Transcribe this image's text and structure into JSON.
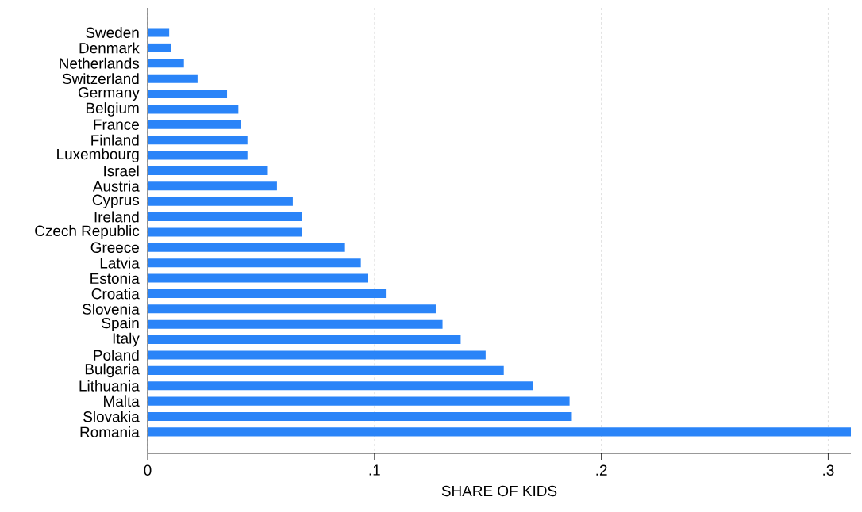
{
  "chart_data": {
    "type": "bar",
    "orientation": "horizontal",
    "xlabel": "SHARE OF KIDS",
    "categories": [
      "Sweden",
      "Denmark",
      "Netherlands",
      "Switzerland",
      "Germany",
      "Belgium",
      "France",
      "Finland",
      "Luxembourg",
      "Israel",
      "Austria",
      "Cyprus",
      "Ireland",
      "Czech Republic",
      "Greece",
      "Latvia",
      "Estonia",
      "Croatia",
      "Slovenia",
      "Spain",
      "Italy",
      "Poland",
      "Bulgaria",
      "Lithuania",
      "Malta",
      "Slovakia",
      "Romania"
    ],
    "values": [
      0.0095,
      0.0105,
      0.016,
      0.022,
      0.035,
      0.04,
      0.041,
      0.044,
      0.044,
      0.053,
      0.057,
      0.064,
      0.068,
      0.068,
      0.087,
      0.094,
      0.097,
      0.105,
      0.127,
      0.13,
      0.138,
      0.149,
      0.157,
      0.17,
      0.186,
      0.187,
      0.31
    ],
    "color": "#2a84f8",
    "xlim": [
      0,
      0.31
    ],
    "xticks": [
      0,
      {
        "value": 0.1,
        "label": ".1"
      },
      {
        "value": 0.2,
        "label": ".2"
      },
      {
        "value": 0.3,
        "label": ".3"
      }
    ],
    "grid": "x"
  }
}
